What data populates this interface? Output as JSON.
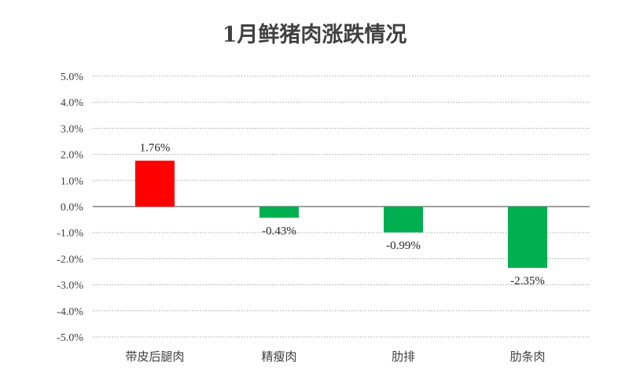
{
  "chart_data": {
    "type": "bar",
    "title": "1月鲜猪肉涨跌情况",
    "categories": [
      "带皮后腿肉",
      "精瘦肉",
      "肋排",
      "肋条肉"
    ],
    "values": [
      1.76,
      -0.43,
      -0.99,
      -2.35
    ],
    "data_labels": [
      "1.76%",
      "-0.43%",
      "-0.99%",
      "-2.35%"
    ],
    "bar_colors": [
      "#ff0000",
      "#00b050",
      "#00b050",
      "#00b050"
    ],
    "ylim": [
      -5,
      5
    ],
    "yticks": [
      5,
      4,
      3,
      2,
      1,
      0,
      -1,
      -2,
      -3,
      -4,
      -5
    ],
    "ytick_labels": [
      "5.0%",
      "4.0%",
      "3.0%",
      "2.0%",
      "1.0%",
      "0.0%",
      "-1.0%",
      "-2.0%",
      "-3.0%",
      "-4.0%",
      "-5.0%"
    ],
    "grid": true,
    "grid_style": "dotted",
    "legend": "none"
  }
}
